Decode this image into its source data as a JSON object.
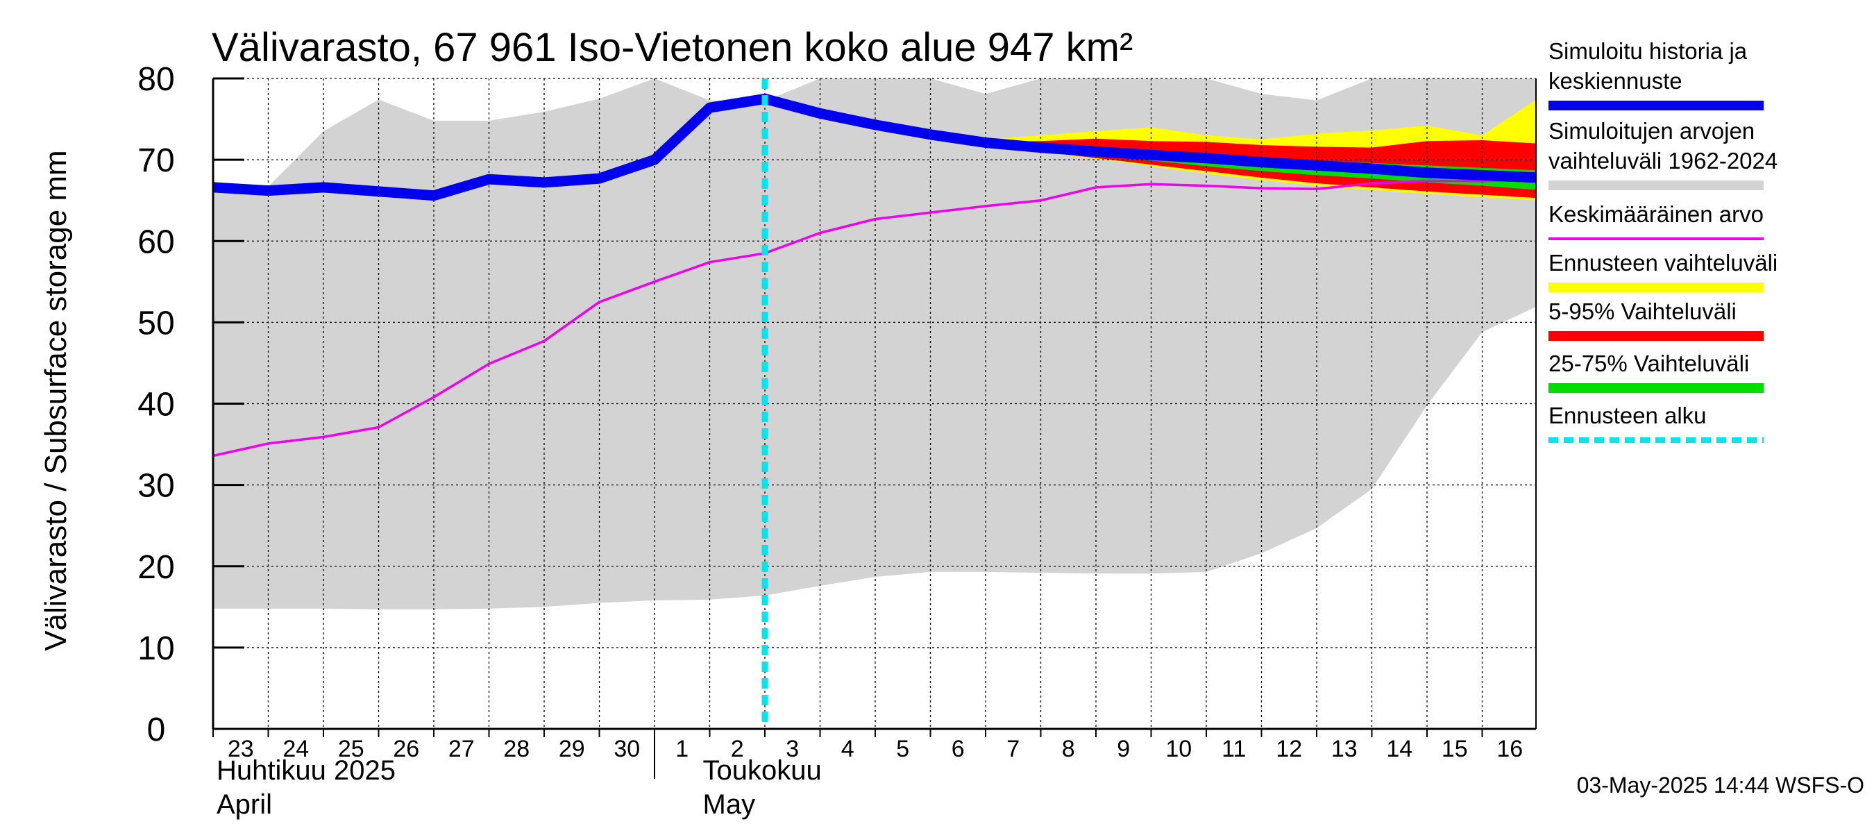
{
  "chart_data": {
    "type": "area",
    "title": "Välivarasto, 67 961 Iso-Vietonen koko alue 947 km²",
    "ylabel": "Välivarasto / Subsurface storage  mm",
    "ylim": [
      0,
      80
    ],
    "yticks": [
      0,
      10,
      20,
      30,
      40,
      50,
      60,
      70,
      80
    ],
    "x": [
      "2025-04-23",
      "2025-04-24",
      "2025-04-25",
      "2025-04-26",
      "2025-04-27",
      "2025-04-28",
      "2025-04-29",
      "2025-04-30",
      "2025-05-01",
      "2025-05-02",
      "2025-05-03",
      "2025-05-04",
      "2025-05-05",
      "2025-05-06",
      "2025-05-07",
      "2025-05-08",
      "2025-05-09",
      "2025-05-10",
      "2025-05-11",
      "2025-05-12",
      "2025-05-13",
      "2025-05-14",
      "2025-05-15",
      "2025-05-16",
      "2025-05-17"
    ],
    "xtick_labels": [
      "23",
      "24",
      "25",
      "26",
      "27",
      "28",
      "29",
      "30",
      "1",
      "2",
      "3",
      "4",
      "5",
      "6",
      "7",
      "8",
      "9",
      "10",
      "11",
      "12",
      "13",
      "14",
      "15",
      "16"
    ],
    "month_labels": [
      {
        "line1": "Huhtikuu  2025",
        "line2": "April"
      },
      {
        "line1": "Toukokuu",
        "line2": "May"
      }
    ],
    "forecast_start": "2025-05-03",
    "grid": true,
    "legend_placement": "right",
    "series": [
      {
        "name": "Simuloitujen arvojen vaihteluväli 1962-2024",
        "kind": "band",
        "color": "#d3d3d3",
        "x": [
          "2025-04-23",
          "2025-04-24",
          "2025-04-25",
          "2025-04-26",
          "2025-04-27",
          "2025-04-28",
          "2025-04-29",
          "2025-04-30",
          "2025-05-01",
          "2025-05-02",
          "2025-05-03",
          "2025-05-04",
          "2025-05-05",
          "2025-05-06",
          "2025-05-07",
          "2025-05-08",
          "2025-05-09",
          "2025-05-10",
          "2025-05-11",
          "2025-05-12",
          "2025-05-13",
          "2025-05-14",
          "2025-05-15",
          "2025-05-16",
          "2025-05-17"
        ],
        "lower": [
          14.8,
          14.8,
          14.8,
          14.7,
          14.7,
          14.8,
          15.0,
          15.5,
          15.8,
          15.9,
          16.4,
          17.6,
          18.7,
          19.3,
          19.3,
          19.2,
          19.1,
          19.1,
          19.3,
          21.6,
          24.7,
          29.5,
          39.8,
          48.8,
          52.0
        ],
        "upper": [
          66.5,
          66.7,
          73.5,
          77.4,
          74.8,
          74.8,
          75.9,
          77.5,
          80.5,
          77.3,
          77.2,
          80.0,
          80.0,
          80.0,
          78.1,
          80.0,
          80.0,
          80.0,
          80.0,
          78.1,
          77.3,
          80.0,
          80.0,
          80.0,
          80.0
        ]
      },
      {
        "name": "Ennusteen vaihteluväli",
        "kind": "band",
        "color": "#ffff00",
        "x": [
          "2025-05-03",
          "2025-05-04",
          "2025-05-05",
          "2025-05-06",
          "2025-05-07",
          "2025-05-08",
          "2025-05-09",
          "2025-05-10",
          "2025-05-11",
          "2025-05-12",
          "2025-05-13",
          "2025-05-14",
          "2025-05-15",
          "2025-05-16",
          "2025-05-17"
        ],
        "lower": [
          77.5,
          75.8,
          74.3,
          73.0,
          72.0,
          71.0,
          70.1,
          69.2,
          68.3,
          67.5,
          66.8,
          66.3,
          65.8,
          65.4,
          65.0
        ],
        "upper": [
          77.5,
          75.8,
          74.5,
          73.3,
          72.5,
          73.0,
          73.5,
          74.0,
          73.0,
          72.5,
          73.2,
          73.6,
          74.2,
          73.0,
          77.5
        ]
      },
      {
        "name": "5-95% Vaihteluväli",
        "kind": "band",
        "color": "#ff0000",
        "x": [
          "2025-05-03",
          "2025-05-04",
          "2025-05-05",
          "2025-05-06",
          "2025-05-07",
          "2025-05-08",
          "2025-05-09",
          "2025-05-10",
          "2025-05-11",
          "2025-05-12",
          "2025-05-13",
          "2025-05-14",
          "2025-05-15",
          "2025-05-16",
          "2025-05-17"
        ],
        "lower": [
          77.5,
          75.8,
          74.3,
          73.0,
          72.0,
          71.0,
          70.2,
          69.4,
          68.6,
          67.8,
          67.1,
          66.6,
          66.1,
          65.7,
          65.3
        ],
        "upper": [
          77.5,
          75.8,
          74.4,
          73.2,
          72.2,
          72.3,
          72.6,
          72.3,
          72.2,
          71.8,
          71.6,
          71.5,
          72.3,
          72.4,
          72.0
        ]
      },
      {
        "name": "25-75% Vaihteluväli",
        "kind": "band",
        "color": "#00dd00",
        "x": [
          "2025-05-03",
          "2025-05-04",
          "2025-05-05",
          "2025-05-06",
          "2025-05-07",
          "2025-05-08",
          "2025-05-09",
          "2025-05-10",
          "2025-05-11",
          "2025-05-12",
          "2025-05-13",
          "2025-05-14",
          "2025-05-15",
          "2025-05-16",
          "2025-05-17"
        ],
        "lower": [
          77.5,
          75.7,
          74.3,
          73.1,
          72.0,
          71.3,
          70.6,
          69.9,
          69.2,
          68.6,
          68.1,
          67.7,
          67.2,
          66.8,
          66.3
        ],
        "upper": [
          77.5,
          75.7,
          74.3,
          73.1,
          72.1,
          71.6,
          71.2,
          70.9,
          70.5,
          70.2,
          69.9,
          69.6,
          69.3,
          69.0,
          68.7
        ]
      },
      {
        "name": "Keskimääräinen arvo",
        "kind": "line",
        "color": "#ee00ee",
        "x": [
          "2025-04-23",
          "2025-04-24",
          "2025-04-25",
          "2025-04-26",
          "2025-04-27",
          "2025-04-28",
          "2025-04-29",
          "2025-04-30",
          "2025-05-01",
          "2025-05-02",
          "2025-05-03",
          "2025-05-04",
          "2025-05-05",
          "2025-05-06",
          "2025-05-07",
          "2025-05-08",
          "2025-05-09",
          "2025-05-10",
          "2025-05-11",
          "2025-05-12",
          "2025-05-13",
          "2025-05-14",
          "2025-05-15",
          "2025-05-16",
          "2025-05-17"
        ],
        "values": [
          33.6,
          35.1,
          35.9,
          37.1,
          40.8,
          44.9,
          47.7,
          52.5,
          55.0,
          57.4,
          58.5,
          61.0,
          62.7,
          63.5,
          64.3,
          65.0,
          66.6,
          67.0,
          66.8,
          66.5,
          66.4,
          67.1,
          67.4,
          67.4,
          67.5
        ]
      },
      {
        "name": "Simuloitu historia ja keskiennuste",
        "kind": "line",
        "color": "#0000ee",
        "x": [
          "2025-04-23",
          "2025-04-24",
          "2025-04-25",
          "2025-04-26",
          "2025-04-27",
          "2025-04-28",
          "2025-04-29",
          "2025-04-30",
          "2025-05-01",
          "2025-05-02",
          "2025-05-03",
          "2025-05-04",
          "2025-05-05",
          "2025-05-06",
          "2025-05-07",
          "2025-05-08",
          "2025-05-09",
          "2025-05-10",
          "2025-05-11",
          "2025-05-12",
          "2025-05-13",
          "2025-05-14",
          "2025-05-15",
          "2025-05-16",
          "2025-05-17"
        ],
        "values": [
          66.6,
          66.2,
          66.6,
          66.1,
          65.6,
          67.6,
          67.2,
          67.7,
          70.0,
          76.4,
          77.5,
          75.7,
          74.3,
          73.1,
          72.1,
          71.5,
          71.0,
          70.6,
          70.2,
          69.7,
          69.3,
          68.9,
          68.4,
          68.1,
          67.8
        ]
      },
      {
        "name": "Ennusteen alku",
        "kind": "vline",
        "color": "#00e5ee",
        "x": "2025-05-03"
      }
    ]
  },
  "legend": [
    {
      "lines": [
        "Simuloitu historia ja",
        "keskiennuste"
      ],
      "color": "#0000ee",
      "style": "thick"
    },
    {
      "lines": [
        "Simuloitujen arvojen",
        "vaihteluväli 1962-2024"
      ],
      "color": "#d3d3d3",
      "style": "band"
    },
    {
      "lines": [
        "Keskimääräinen arvo"
      ],
      "color": "#ee00ee",
      "style": "thin"
    },
    {
      "lines": [
        "Ennusteen vaihteluväli"
      ],
      "color": "#ffff00",
      "style": "band"
    },
    {
      "lines": [
        "5-95% Vaihteluväli"
      ],
      "color": "#ff0000",
      "style": "band"
    },
    {
      "lines": [
        "25-75% Vaihteluväli"
      ],
      "color": "#00dd00",
      "style": "band"
    },
    {
      "lines": [
        "Ennusteen alku"
      ],
      "color": "#00e5ee",
      "style": "dashed"
    }
  ],
  "footer": "03-May-2025 14:44 WSFS-O"
}
